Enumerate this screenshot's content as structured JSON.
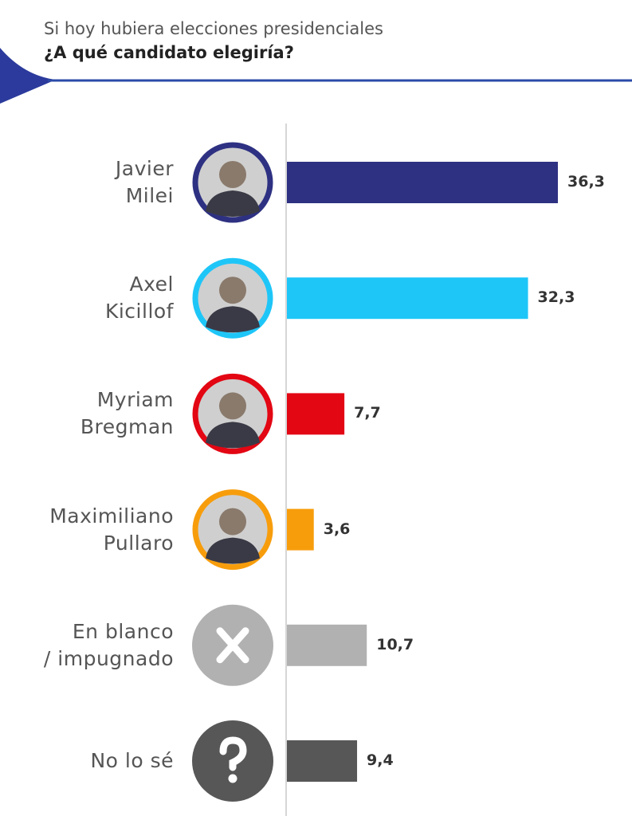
{
  "chart_data": {
    "type": "bar",
    "orientation": "horizontal",
    "title": "Si hoy hubiera elecciones presidenciales",
    "subtitle": "¿A qué candidato elegiría?",
    "categories": [
      "Javier\nMilei",
      "Axel\nKicillof",
      "Myriam\nBregman",
      "Maximiliano\nPullaro",
      "En blanco\n/ impugnado",
      "No lo sé"
    ],
    "values": [
      36.3,
      32.3,
      7.7,
      3.6,
      10.7,
      9.4
    ],
    "value_labels": [
      "36,3",
      "32,3",
      "7,7",
      "3,6",
      "10,7",
      "9,4"
    ],
    "colors": [
      "#2e3182",
      "#1ec6f8",
      "#e30613",
      "#f79d0c",
      "#b1b1b1",
      "#575757"
    ]
  }
}
